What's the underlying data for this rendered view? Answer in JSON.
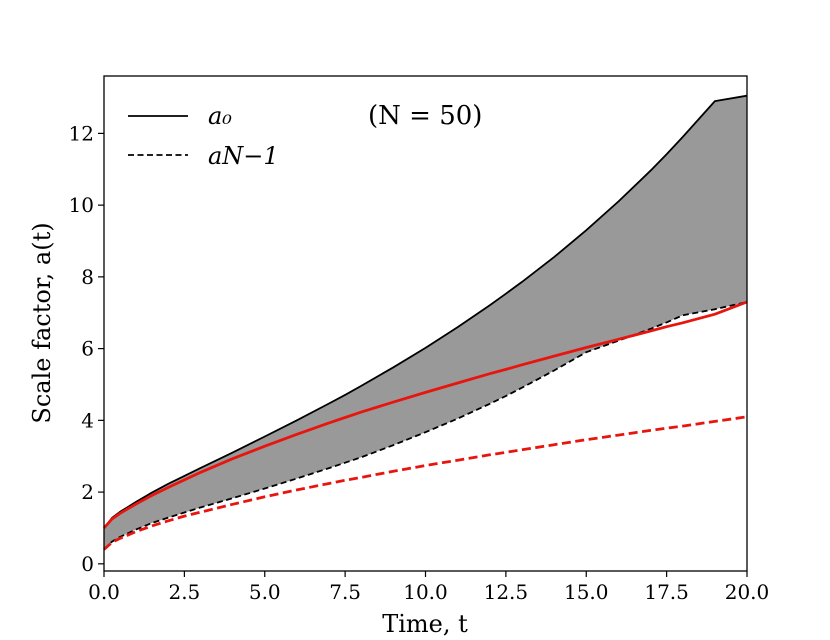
{
  "chart_data": {
    "type": "line",
    "xlabel": "Time, t",
    "ylabel": "Scale factor, a(t)",
    "xlim": [
      0,
      20
    ],
    "ylim": [
      -0.2,
      13.6
    ],
    "xticks": [
      0.0,
      2.5,
      5.0,
      7.5,
      10.0,
      12.5,
      15.0,
      17.5,
      20.0
    ],
    "xtick_labels": [
      "0.0",
      "2.5",
      "5.0",
      "7.5",
      "10.0",
      "12.5",
      "15.0",
      "17.5",
      "20.0"
    ],
    "yticks": [
      0,
      2,
      4,
      6,
      8,
      10,
      12
    ],
    "ytick_labels": [
      "0",
      "2",
      "4",
      "6",
      "8",
      "10",
      "12"
    ],
    "grid": false,
    "legend": {
      "placement": "upper-left",
      "entries": [
        {
          "label": "a₀",
          "style": "solid",
          "color": "#000000"
        },
        {
          "label": "aN−1",
          "style": "dashed",
          "color": "#000000"
        }
      ]
    },
    "annotation": "(N = 50)",
    "fill_between": {
      "lower_series": "a_N-1 (black dashed)",
      "upper_series": "a_0 (black solid)",
      "color": "#999999"
    },
    "x": [
      0,
      0.25,
      0.5,
      1,
      1.5,
      2,
      2.5,
      3,
      4,
      5,
      6,
      7,
      7.5,
      8,
      9,
      10,
      11,
      12,
      12.5,
      13,
      14,
      15,
      16,
      17,
      17.5,
      18,
      19,
      20
    ],
    "series": [
      {
        "style": "solid",
        "color": "#000000",
        "values": [
          1.0,
          1.28,
          1.45,
          1.73,
          1.99,
          2.23,
          2.45,
          2.67,
          3.1,
          3.55,
          4.0,
          4.47,
          4.71,
          4.96,
          5.48,
          6.02,
          6.6,
          7.21,
          7.53,
          7.86,
          8.55,
          9.3,
          10.1,
          10.96,
          11.42,
          11.9,
          12.9,
          13.05
        ]
      },
      {
        "style": "dashed",
        "color": "#000000",
        "values": [
          0.4,
          0.62,
          0.75,
          0.96,
          1.14,
          1.29,
          1.43,
          1.57,
          1.83,
          2.1,
          2.38,
          2.67,
          2.82,
          2.97,
          3.31,
          3.67,
          4.05,
          4.46,
          4.68,
          4.91,
          5.39,
          5.9,
          6.22,
          6.55,
          6.73,
          6.93,
          7.1,
          7.3
        ]
      },
      {
        "style": "solid",
        "color": "#e8150f",
        "values": [
          1.0,
          1.25,
          1.41,
          1.67,
          1.91,
          2.13,
          2.34,
          2.55,
          2.93,
          3.28,
          3.61,
          3.93,
          4.08,
          4.23,
          4.51,
          4.78,
          5.04,
          5.3,
          5.42,
          5.55,
          5.79,
          6.03,
          6.26,
          6.49,
          6.61,
          6.72,
          6.96,
          7.3
        ]
      },
      {
        "style": "dashed",
        "color": "#e8150f",
        "values": [
          0.4,
          0.6,
          0.71,
          0.9,
          1.06,
          1.2,
          1.33,
          1.44,
          1.66,
          1.87,
          2.06,
          2.24,
          2.33,
          2.41,
          2.58,
          2.74,
          2.89,
          3.04,
          3.11,
          3.18,
          3.32,
          3.46,
          3.59,
          3.72,
          3.78,
          3.84,
          3.97,
          4.1
        ]
      }
    ]
  }
}
